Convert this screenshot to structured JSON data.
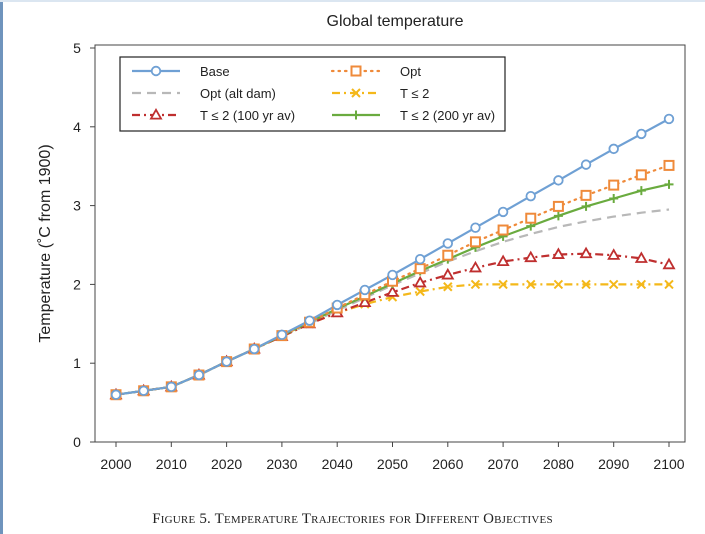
{
  "chart_data": {
    "type": "line",
    "title": "Global temperature",
    "xlabel": "",
    "ylabel": "Temperature (˚C from 1900)",
    "xlim": [
      2000,
      2100
    ],
    "ylim": [
      0,
      5
    ],
    "xticks": [
      2000,
      2010,
      2020,
      2030,
      2040,
      2050,
      2060,
      2070,
      2080,
      2090,
      2100
    ],
    "yticks": [
      0,
      1,
      2,
      3,
      4,
      5
    ],
    "grid": false,
    "legend_position": "top-left",
    "series": [
      {
        "name": "Base",
        "color": "#6fa0d4",
        "marker": "circle",
        "dash": "solid",
        "x": [
          2000,
          2005,
          2010,
          2015,
          2020,
          2025,
          2030,
          2035,
          2040,
          2045,
          2050,
          2055,
          2060,
          2065,
          2070,
          2075,
          2080,
          2085,
          2090,
          2095,
          2100
        ],
        "y": [
          0.6,
          0.65,
          0.7,
          0.85,
          1.02,
          1.18,
          1.36,
          1.54,
          1.74,
          1.93,
          2.12,
          2.32,
          2.52,
          2.72,
          2.92,
          3.12,
          3.32,
          3.52,
          3.72,
          3.91,
          4.1
        ]
      },
      {
        "name": "Opt",
        "color": "#ef8a3a",
        "marker": "square",
        "dash": "dot",
        "x": [
          2000,
          2005,
          2010,
          2015,
          2020,
          2025,
          2030,
          2035,
          2040,
          2045,
          2050,
          2055,
          2060,
          2065,
          2070,
          2075,
          2080,
          2085,
          2090,
          2095,
          2100
        ],
        "y": [
          0.6,
          0.65,
          0.7,
          0.85,
          1.02,
          1.18,
          1.35,
          1.52,
          1.7,
          1.87,
          2.04,
          2.2,
          2.37,
          2.54,
          2.69,
          2.84,
          2.99,
          3.13,
          3.26,
          3.39,
          3.51
        ]
      },
      {
        "name": "Opt (alt dam)",
        "color": "#b8b8b8",
        "marker": "none",
        "dash": "dash",
        "x": [
          2000,
          2005,
          2010,
          2015,
          2020,
          2025,
          2030,
          2035,
          2040,
          2045,
          2050,
          2055,
          2060,
          2065,
          2070,
          2075,
          2080,
          2085,
          2090,
          2095,
          2100
        ],
        "y": [
          0.6,
          0.65,
          0.7,
          0.85,
          1.02,
          1.18,
          1.34,
          1.5,
          1.67,
          1.83,
          1.99,
          2.14,
          2.29,
          2.42,
          2.54,
          2.64,
          2.73,
          2.8,
          2.86,
          2.91,
          2.95
        ]
      },
      {
        "name": "T ≤ 2",
        "color": "#f4b81a",
        "marker": "x",
        "dash": "dashdot",
        "x": [
          2000,
          2005,
          2010,
          2015,
          2020,
          2025,
          2030,
          2035,
          2040,
          2045,
          2050,
          2055,
          2060,
          2065,
          2070,
          2075,
          2080,
          2085,
          2090,
          2095,
          2100
        ],
        "y": [
          0.6,
          0.65,
          0.7,
          0.85,
          1.02,
          1.18,
          1.34,
          1.5,
          1.64,
          1.75,
          1.84,
          1.91,
          1.97,
          2.0,
          2.0,
          2.0,
          2.0,
          2.0,
          2.0,
          2.0,
          2.0
        ]
      },
      {
        "name": "T ≤ 2 (100 yr av)",
        "color": "#bf2f2f",
        "marker": "triangle",
        "dash": "dashdot",
        "x": [
          2000,
          2005,
          2010,
          2015,
          2020,
          2025,
          2030,
          2035,
          2040,
          2045,
          2050,
          2055,
          2060,
          2065,
          2070,
          2075,
          2080,
          2085,
          2090,
          2095,
          2100
        ],
        "y": [
          0.6,
          0.65,
          0.7,
          0.85,
          1.02,
          1.18,
          1.34,
          1.5,
          1.64,
          1.77,
          1.9,
          2.02,
          2.12,
          2.21,
          2.29,
          2.34,
          2.38,
          2.39,
          2.37,
          2.33,
          2.25
        ]
      },
      {
        "name": "T ≤ 2 (200 yr av)",
        "color": "#6aab3f",
        "marker": "plus",
        "dash": "solid",
        "x": [
          2000,
          2005,
          2010,
          2015,
          2020,
          2025,
          2030,
          2035,
          2040,
          2045,
          2050,
          2055,
          2060,
          2065,
          2070,
          2075,
          2080,
          2085,
          2090,
          2095,
          2100
        ],
        "y": [
          0.6,
          0.65,
          0.7,
          0.85,
          1.02,
          1.18,
          1.35,
          1.52,
          1.69,
          1.85,
          2.01,
          2.17,
          2.32,
          2.47,
          2.61,
          2.74,
          2.87,
          2.99,
          3.09,
          3.19,
          3.27
        ]
      }
    ]
  },
  "caption": "Figure 5. Temperature Trajectories for Different Objectives"
}
